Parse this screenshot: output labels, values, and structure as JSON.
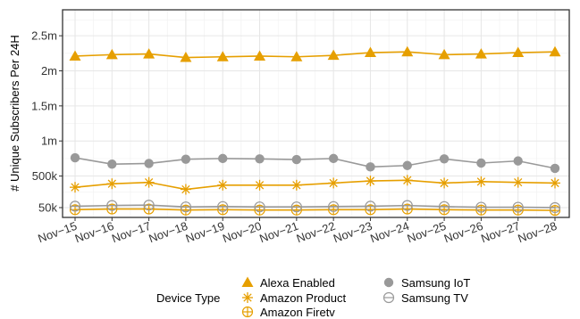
{
  "chart_data": {
    "type": "line",
    "title": "",
    "xlabel": "",
    "ylabel": "# Unique Subscribers Per 24H",
    "categories": [
      "Nov−15",
      "Nov−16",
      "Nov−17",
      "Nov−18",
      "Nov−19",
      "Nov−20",
      "Nov−21",
      "Nov−22",
      "Nov−23",
      "Nov−24",
      "Nov−25",
      "Nov−26",
      "Nov−27",
      "Nov−28"
    ],
    "yticks": [
      50000,
      500000,
      1000000,
      1500000,
      2000000,
      2500000
    ],
    "ytick_labels": [
      "50k",
      "500k",
      "1m",
      "1.5m",
      "2m",
      "2.5m"
    ],
    "ylim": [
      -90000,
      2870000
    ],
    "grid": true,
    "legend_title": "Device Type",
    "legend_placement": "bottom",
    "series": [
      {
        "name": "Alexa Enabled",
        "color": "#E69F00",
        "marker": "triangle-filled",
        "values": [
          2210000,
          2230000,
          2240000,
          2190000,
          2200000,
          2210000,
          2200000,
          2220000,
          2260000,
          2270000,
          2230000,
          2240000,
          2260000,
          2270000
        ]
      },
      {
        "name": "Amazon Product",
        "color": "#E69F00",
        "marker": "asterisk",
        "values": [
          340000,
          390000,
          410000,
          310000,
          370000,
          370000,
          370000,
          400000,
          430000,
          440000,
          400000,
          420000,
          410000,
          400000
        ]
      },
      {
        "name": "Amazon Firetv",
        "color": "#E69F00",
        "marker": "circle-plus",
        "values": [
          20000,
          30000,
          30000,
          15000,
          20000,
          15000,
          15000,
          20000,
          20000,
          30000,
          20000,
          15000,
          15000,
          10000
        ]
      },
      {
        "name": "Samsung IoT",
        "color": "#999999",
        "marker": "circle-filled",
        "values": [
          760000,
          670000,
          680000,
          740000,
          750000,
          745000,
          735000,
          750000,
          630000,
          650000,
          745000,
          685000,
          715000,
          610000
        ]
      },
      {
        "name": "Samsung TV",
        "color": "#999999",
        "marker": "circle-minus",
        "values": [
          70000,
          80000,
          85000,
          60000,
          65000,
          60000,
          60000,
          65000,
          70000,
          80000,
          65000,
          55000,
          55000,
          50000
        ]
      }
    ]
  }
}
